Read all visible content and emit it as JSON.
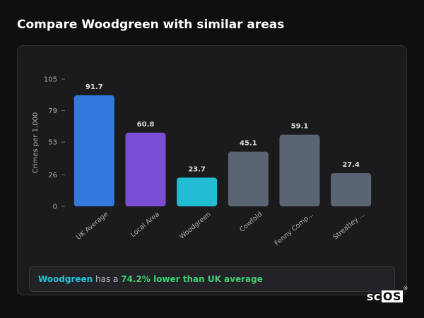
{
  "title": "Compare Woodgreen with similar areas",
  "chart_data": {
    "type": "bar",
    "ylabel": "Crimes per 1,000",
    "ylim": [
      0,
      105
    ],
    "yticks": [
      0,
      26,
      53,
      79,
      105
    ],
    "categories": [
      "UK Average",
      "Local Area",
      "Woodgreen",
      "Cowfold",
      "Fenny Comp...",
      "Streatley ..."
    ],
    "values": [
      91.7,
      60.8,
      23.7,
      45.1,
      59.1,
      27.4
    ],
    "value_labels": [
      "91.7",
      "60.8",
      "23.7",
      "45.1",
      "59.1",
      "27.4"
    ],
    "colors": [
      "#3578dd",
      "#7a4fd6",
      "#22bcd4",
      "#5b6473",
      "#5b6473",
      "#5b6473"
    ],
    "grid": false,
    "legend": "none"
  },
  "summary": {
    "area": "Woodgreen",
    "middle": " has a ",
    "highlight": "74.2% lower than UK average"
  },
  "logo": {
    "prefix": "sc",
    "boxed": "OS",
    "mark": "®"
  }
}
